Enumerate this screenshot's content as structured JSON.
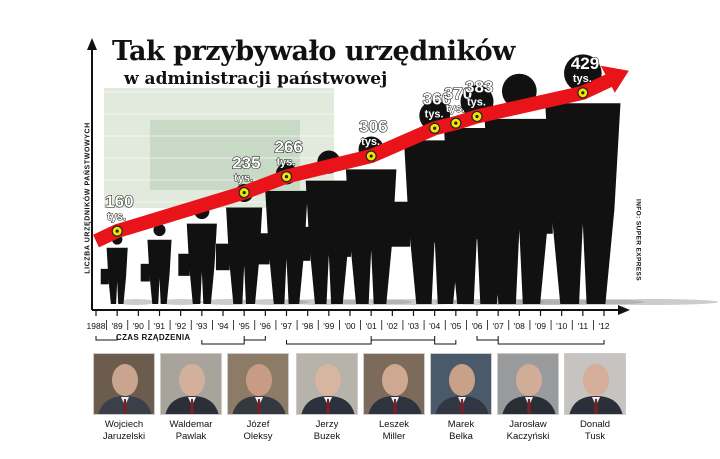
{
  "title": "Tak przybywało urzędników",
  "subtitle": "w administracji państwowej",
  "y_axis_label": "LICZBA URZĘDNIKÓW PAŃSTWOWYCH",
  "source": "INFO: SUPER EXPRESS",
  "x_axis_caption": "CZAS RZĄDZENIA",
  "value_unit": "tys.",
  "colors": {
    "arrow": "#e8141a",
    "dot": "#f2e600",
    "silhouette": "#111111",
    "banknote": "#c8d8c0"
  },
  "chart_data": {
    "type": "line",
    "title": "Tak przybywało urzędników",
    "subtitle": "w administracji państwowej",
    "ylabel": "LICZBA URZĘDNIKÓW PAŃSTWOWYCH",
    "xlabel": "CZAS RZĄDZENIA",
    "unit": "tys.",
    "x_ticks": [
      "1988",
      "'89",
      "'90",
      "'91",
      "'92",
      "'93",
      "'94",
      "'95",
      "'96",
      "'97",
      "'98",
      "'99",
      "'00",
      "'01",
      "'02",
      "'03",
      "'04",
      "'05",
      "'06",
      "'07",
      "'08",
      "'09",
      "'10",
      "'11",
      "'12"
    ],
    "x_range": [
      1988,
      2012
    ],
    "ylim": [
      100,
      450
    ],
    "points": [
      {
        "x": 1989,
        "label": "'89",
        "value": 160
      },
      {
        "x": 1995,
        "label": "'95",
        "value": 235
      },
      {
        "x": 1997,
        "label": "'97",
        "value": 266
      },
      {
        "x": 2001,
        "label": "'01",
        "value": 306
      },
      {
        "x": 2004,
        "label": "'04",
        "value": 360
      },
      {
        "x": 2005,
        "label": "'05",
        "value": 370
      },
      {
        "x": 2006,
        "label": "'06",
        "value": 383
      },
      {
        "x": 2011,
        "label": "'11",
        "value": 429
      }
    ],
    "labelled_points": [
      {
        "x": 1989,
        "value": 160
      },
      {
        "x": 1995,
        "value": 235
      },
      {
        "x": 1997,
        "value": 266
      },
      {
        "x": 2001,
        "value": 306
      },
      {
        "x": 2004,
        "value": 360
      },
      {
        "x": 2005,
        "value": 370
      },
      {
        "x": 2006,
        "value": 383
      },
      {
        "x": 2011,
        "value": 429
      }
    ],
    "silhouettes": [
      {
        "x": 1989,
        "value": 160
      },
      {
        "x": 1991,
        "value": 175
      },
      {
        "x": 1993,
        "value": 205
      },
      {
        "x": 1995,
        "value": 235
      },
      {
        "x": 1997,
        "value": 266
      },
      {
        "x": 1999,
        "value": 285
      },
      {
        "x": 2001,
        "value": 306
      },
      {
        "x": 2004,
        "value": 360
      },
      {
        "x": 2006,
        "value": 383
      },
      {
        "x": 2008,
        "value": 400
      },
      {
        "x": 2011,
        "value": 429
      }
    ],
    "grid": false,
    "legend": "none"
  },
  "prime_ministers": [
    {
      "first": "Wojciech",
      "last": "Jaruzelski",
      "from": 1988,
      "to": 1989
    },
    {
      "first": "Waldemar",
      "last": "Pawlak",
      "from": 1993,
      "to": 1995
    },
    {
      "first": "Józef",
      "last": "Oleksy",
      "from": 1995,
      "to": 1996
    },
    {
      "first": "Jerzy",
      "last": "Buzek",
      "from": 1997,
      "to": 2001
    },
    {
      "first": "Leszek",
      "last": "Miller",
      "from": 2001,
      "to": 2004
    },
    {
      "first": "Marek",
      "last": "Belka",
      "from": 2004,
      "to": 2005
    },
    {
      "first": "Jarosław",
      "last": "Kaczyński",
      "from": 2006,
      "to": 2007
    },
    {
      "first": "Donald",
      "last": "Tusk",
      "from": 2007,
      "to": 2012
    }
  ]
}
